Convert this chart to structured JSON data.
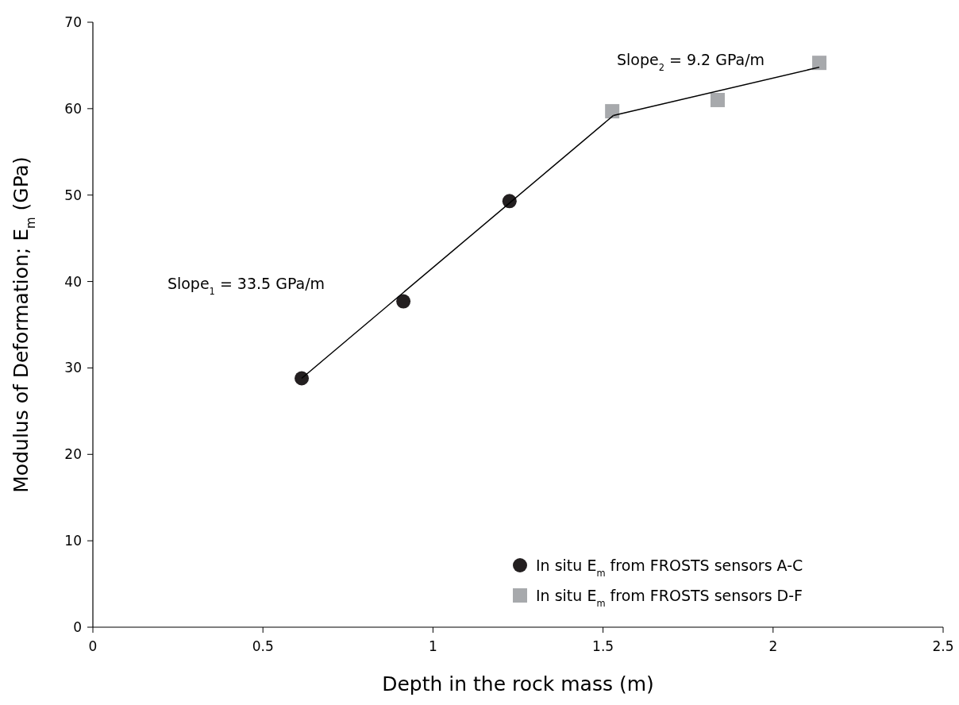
{
  "chart_data": {
    "type": "scatter",
    "xlabel": "Depth in the rock mass (m)",
    "ylabel": "Modulus of Deformation; E$_{m}$ (GPa)",
    "xlim": [
      0,
      2.5
    ],
    "xticks": [
      0,
      0.5,
      1,
      1.5,
      2,
      2.5
    ],
    "ylim": [
      0,
      70
    ],
    "yticks": [
      0,
      10,
      20,
      30,
      40,
      50,
      60,
      70
    ],
    "grid": false,
    "legend": "bottom right",
    "series": [
      {
        "name": "In situ E$_{m}$ from FROSTS sensors A-C",
        "color": "#231f20",
        "marker": "circle",
        "x": [
          0.614,
          0.913,
          1.225
        ],
        "values": [
          28.8,
          37.7,
          49.3
        ]
      },
      {
        "name": "In situ E$_{m}$ from FROSTS sensors D-F",
        "color": "#a7a9ac",
        "marker": "square",
        "x": [
          1.527,
          1.837,
          2.136
        ],
        "values": [
          59.7,
          61.0,
          65.3
        ]
      },
      {
        "type": "line",
        "color": "#000000",
        "x": [
          0.614,
          1.53
        ],
        "values": [
          28.8,
          59.2
        ]
      },
      {
        "type": "line",
        "color": "#000000",
        "x": [
          1.53,
          2.136
        ],
        "values": [
          59.2,
          64.8
        ]
      }
    ],
    "annotations": [
      "Slope$_{1}$ = 33.5 GPa/m",
      "Slope$_{2}$ = 9.2 GPa/m"
    ]
  }
}
